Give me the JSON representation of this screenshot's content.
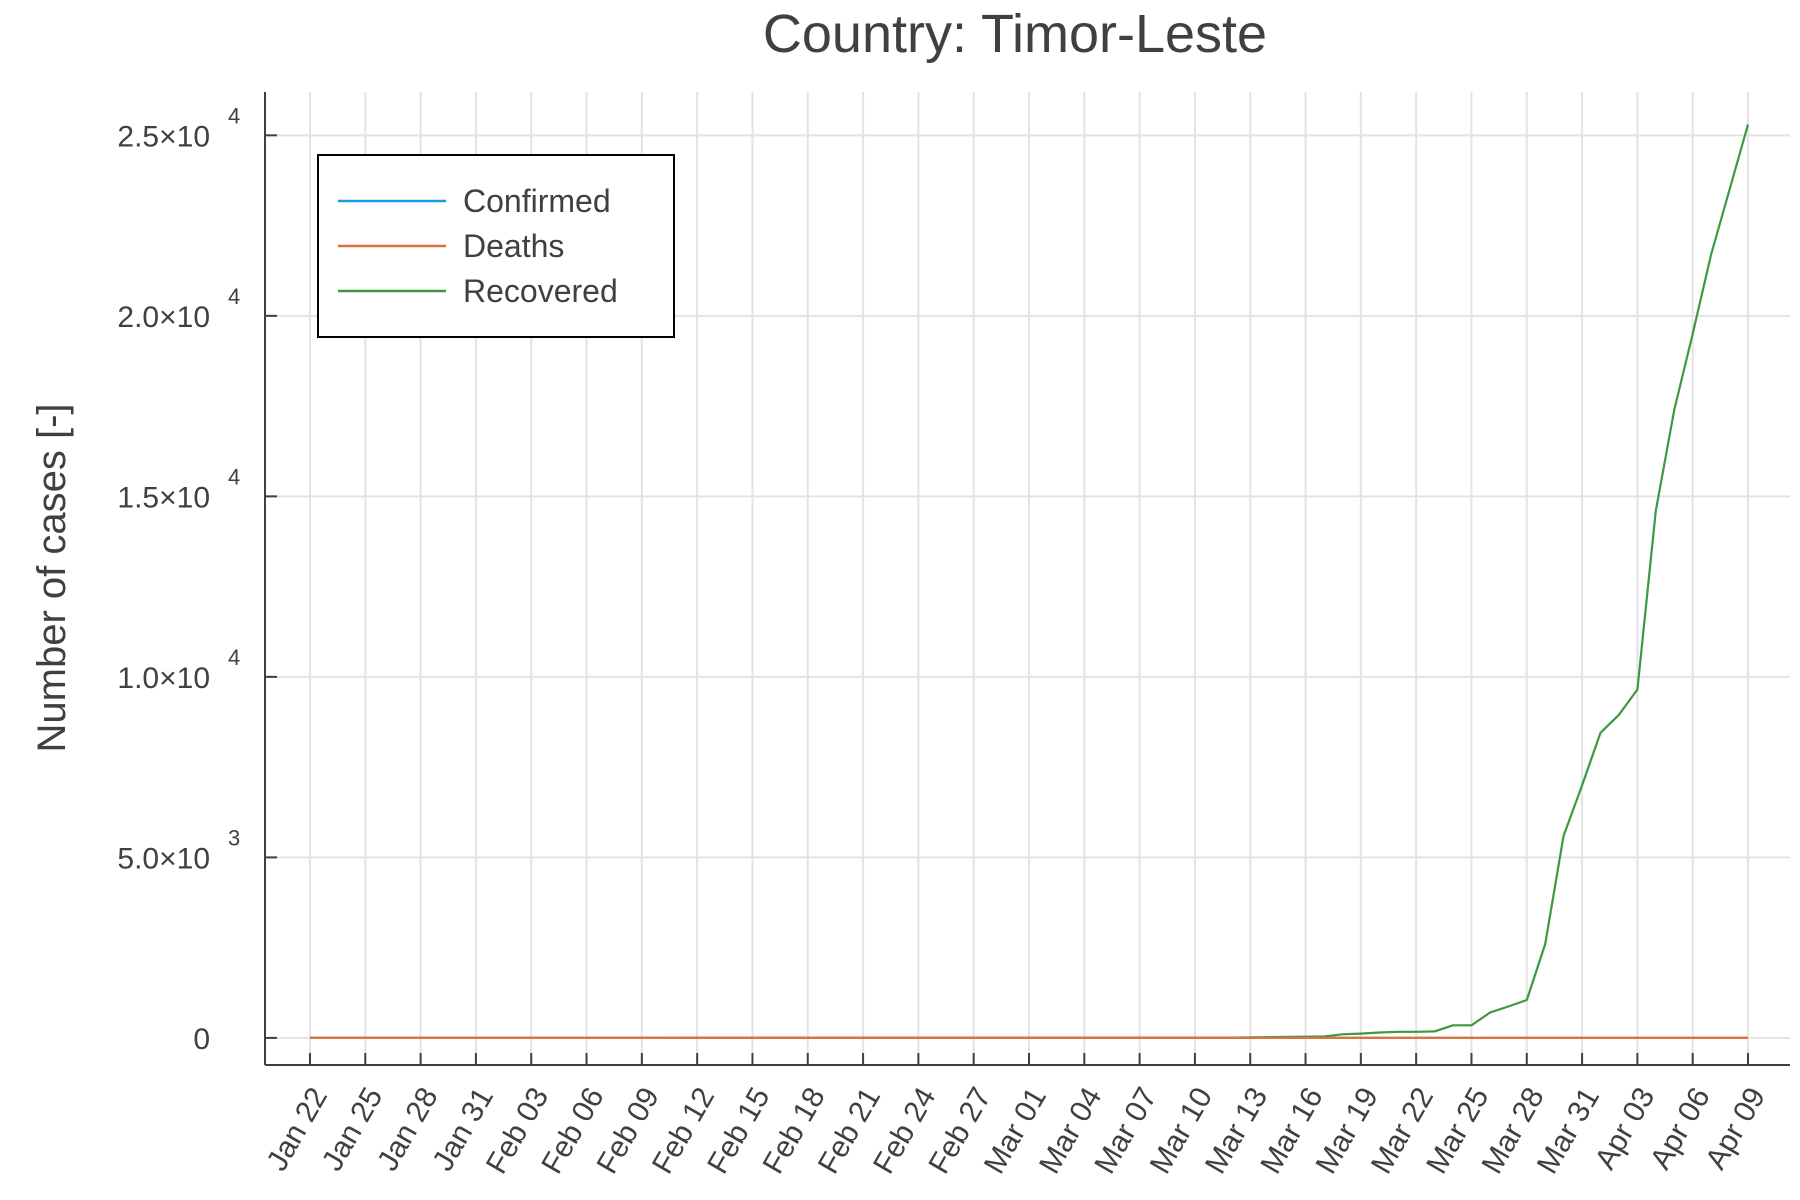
{
  "chart_data": {
    "type": "line",
    "title": "Country: Timor-Leste",
    "xlabel": "",
    "ylabel": "Number of cases [-]",
    "x_ticks": [
      "Jan 22",
      "Jan 25",
      "Jan 28",
      "Jan 31",
      "Feb 03",
      "Feb 06",
      "Feb 09",
      "Feb 12",
      "Feb 15",
      "Feb 18",
      "Feb 21",
      "Feb 24",
      "Feb 27",
      "Mar 01",
      "Mar 04",
      "Mar 07",
      "Mar 10",
      "Mar 13",
      "Mar 16",
      "Mar 19",
      "Mar 22",
      "Mar 25",
      "Mar 28",
      "Mar 31",
      "Apr 03",
      "Apr 06",
      "Apr 09"
    ],
    "y_ticks": [
      {
        "value": 0,
        "mantissa": "0",
        "exponent": ""
      },
      {
        "value": 5000,
        "mantissa": "5.0×10",
        "exponent": "3"
      },
      {
        "value": 10000,
        "mantissa": "1.0×10",
        "exponent": "4"
      },
      {
        "value": 15000,
        "mantissa": "1.5×10",
        "exponent": "4"
      },
      {
        "value": 20000,
        "mantissa": "2.0×10",
        "exponent": "4"
      },
      {
        "value": 25000,
        "mantissa": "2.5×10",
        "exponent": "4"
      }
    ],
    "xlim": [
      0,
      78
    ],
    "ylim": [
      -750,
      26200
    ],
    "grid": true,
    "legend_position": "top-left",
    "series": [
      {
        "name": "Confirmed",
        "color": "#1f9be8",
        "x": [
          0,
          57,
          60,
          63,
          66,
          69,
          72,
          75,
          78
        ],
        "y": [
          0,
          0,
          0,
          1,
          1,
          1,
          1,
          1,
          2
        ]
      },
      {
        "name": "Deaths",
        "color": "#e2703a",
        "x": [
          0,
          78
        ],
        "y": [
          0,
          0
        ]
      },
      {
        "name": "Recovered",
        "color": "#3a9a41",
        "x": [
          0,
          50,
          55,
          56,
          57,
          58,
          59,
          60,
          61,
          62,
          63,
          64,
          65,
          66,
          67,
          68,
          69,
          70,
          71,
          72,
          73,
          74,
          75,
          76,
          77,
          78
        ],
        "y": [
          0,
          10,
          40,
          100,
          120,
          150,
          170,
          170,
          180,
          350,
          350,
          700,
          870,
          1050,
          2600,
          5600,
          7000,
          8450,
          8950,
          9650,
          14600,
          17400,
          19500,
          21700,
          23500,
          25300
        ]
      }
    ]
  }
}
